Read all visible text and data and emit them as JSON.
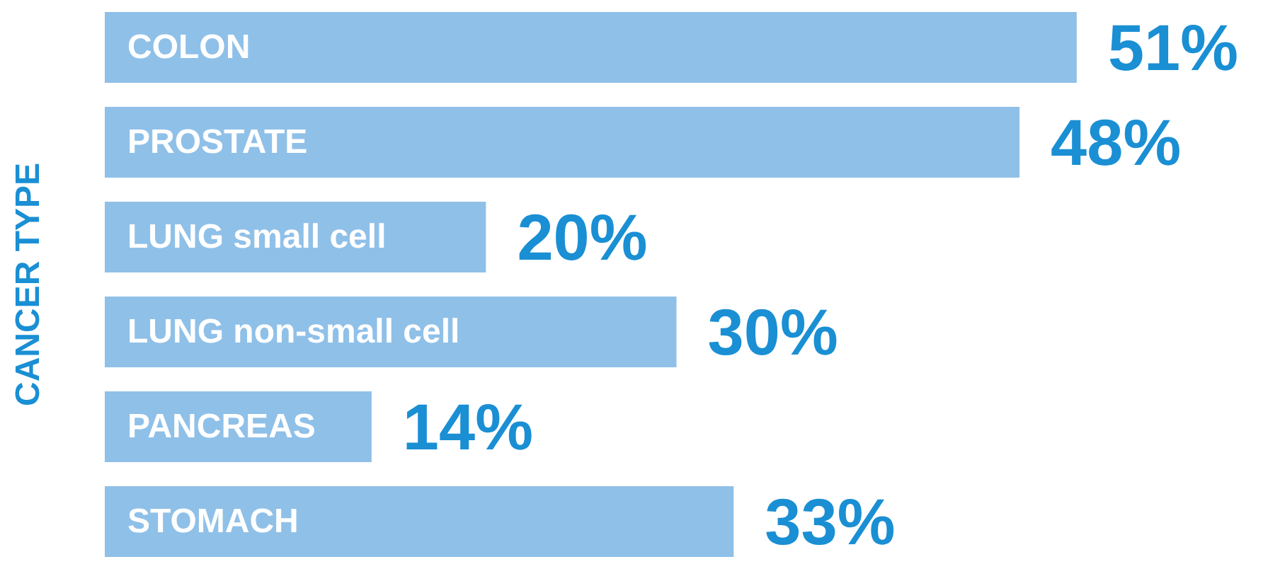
{
  "chart_data": {
    "type": "bar",
    "orientation": "horizontal",
    "ylabel": "CANCER TYPE",
    "categories": [
      "COLON",
      "PROSTATE",
      "LUNG small cell",
      "LUNG non-small cell",
      "PANCREAS",
      "STOMACH"
    ],
    "values": [
      51,
      48,
      20,
      30,
      14,
      33
    ],
    "value_labels": [
      "51%",
      "48%",
      "20%",
      "30%",
      "14%",
      "33%"
    ],
    "color": "#8fc0e8"
  }
}
